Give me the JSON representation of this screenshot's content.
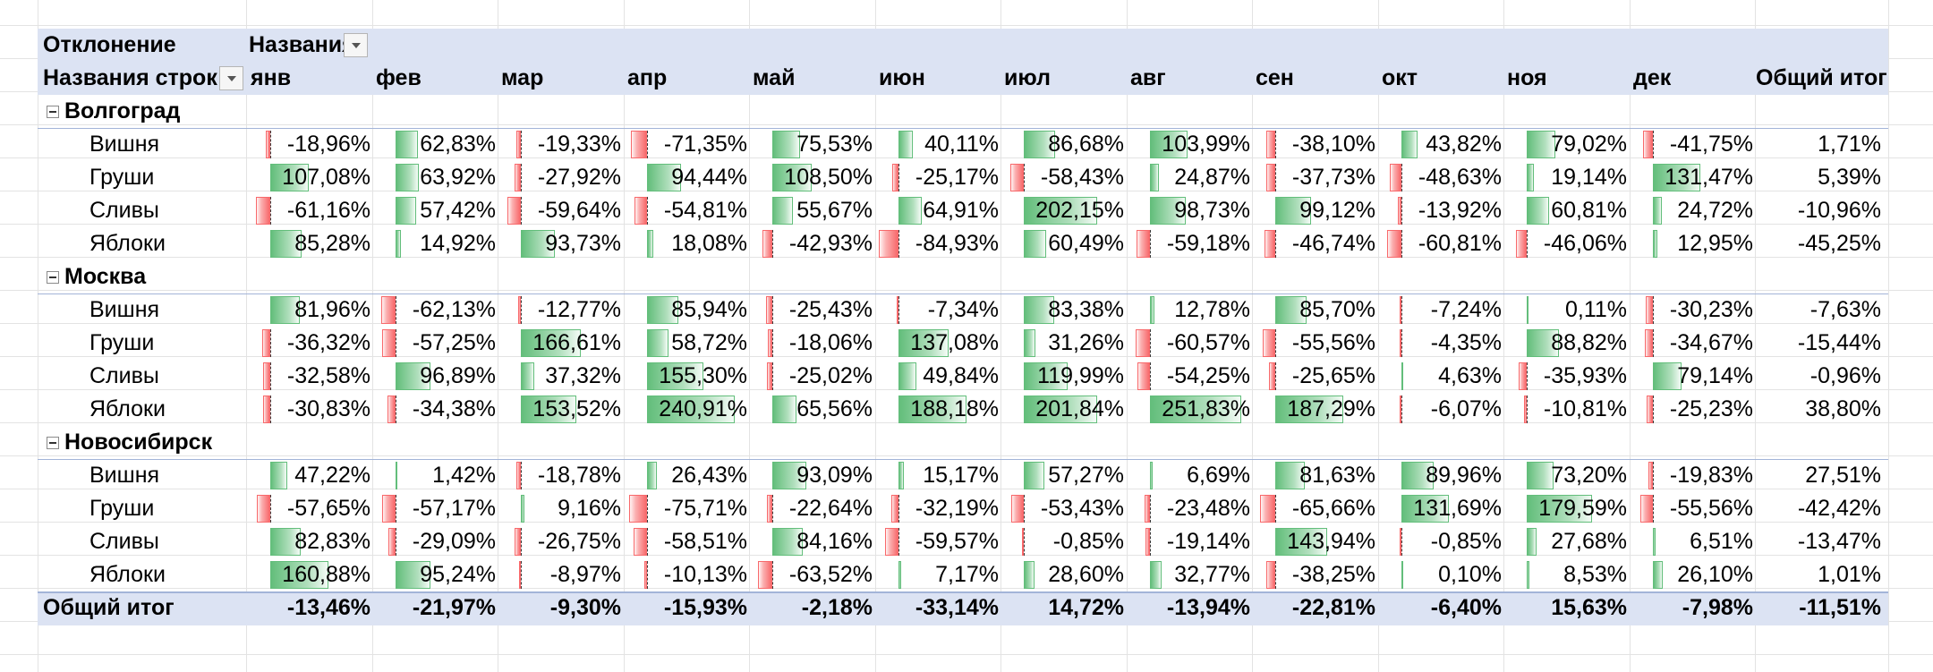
{
  "pivot": {
    "value_field_label": "Отклонение",
    "column_labels_header": "Названия столбцов",
    "row_labels_header": "Названия строк",
    "grand_total_label": "Общий итог",
    "months": [
      "янв",
      "фев",
      "мар",
      "апр",
      "май",
      "июн",
      "июл",
      "авг",
      "сен",
      "окт",
      "ноя",
      "дек"
    ],
    "groups": [
      {
        "name": "Волгоград",
        "rows": [
          {
            "label": "Вишня",
            "values": [
              "-18,96%",
              "62,83%",
              "-19,33%",
              "-71,35%",
              "75,53%",
              "40,11%",
              "86,68%",
              "103,99%",
              "-38,10%",
              "43,82%",
              "79,02%",
              "-41,75%"
            ],
            "total": "1,71%"
          },
          {
            "label": "Груши",
            "values": [
              "107,08%",
              "63,92%",
              "-27,92%",
              "94,44%",
              "108,50%",
              "-25,17%",
              "-58,43%",
              "24,87%",
              "-37,73%",
              "-48,63%",
              "19,14%",
              "131,47%"
            ],
            "total": "5,39%"
          },
          {
            "label": "Сливы",
            "values": [
              "-61,16%",
              "57,42%",
              "-59,64%",
              "-54,81%",
              "55,67%",
              "64,91%",
              "202,15%",
              "98,73%",
              "99,12%",
              "-13,92%",
              "60,81%",
              "24,72%"
            ],
            "total": "-10,96%"
          },
          {
            "label": "Яблоки",
            "values": [
              "85,28%",
              "14,92%",
              "93,73%",
              "18,08%",
              "-42,93%",
              "-84,93%",
              "60,49%",
              "-59,18%",
              "-46,74%",
              "-60,81%",
              "-46,06%",
              "12,95%"
            ],
            "total": "-45,25%"
          }
        ]
      },
      {
        "name": "Москва",
        "rows": [
          {
            "label": "Вишня",
            "values": [
              "81,96%",
              "-62,13%",
              "-12,77%",
              "85,94%",
              "-25,43%",
              "-7,34%",
              "83,38%",
              "12,78%",
              "85,70%",
              "-7,24%",
              "0,11%",
              "-30,23%"
            ],
            "total": "-7,63%"
          },
          {
            "label": "Груши",
            "values": [
              "-36,32%",
              "-57,25%",
              "166,61%",
              "58,72%",
              "-18,06%",
              "137,08%",
              "31,26%",
              "-60,57%",
              "-55,56%",
              "-4,35%",
              "88,82%",
              "-34,67%"
            ],
            "total": "-15,44%"
          },
          {
            "label": "Сливы",
            "values": [
              "-32,58%",
              "96,89%",
              "37,32%",
              "155,30%",
              "-25,02%",
              "49,84%",
              "119,99%",
              "-54,25%",
              "-25,65%",
              "4,63%",
              "-35,93%",
              "79,14%"
            ],
            "total": "-0,96%"
          },
          {
            "label": "Яблоки",
            "values": [
              "-30,83%",
              "-34,38%",
              "153,52%",
              "240,91%",
              "65,56%",
              "188,18%",
              "201,84%",
              "251,83%",
              "187,29%",
              "-6,07%",
              "-10,81%",
              "-25,23%"
            ],
            "total": "38,80%"
          }
        ]
      },
      {
        "name": "Новосибирск",
        "rows": [
          {
            "label": "Вишня",
            "values": [
              "47,22%",
              "1,42%",
              "-18,78%",
              "26,43%",
              "93,09%",
              "15,17%",
              "57,27%",
              "6,69%",
              "81,63%",
              "89,96%",
              "73,20%",
              "-19,83%"
            ],
            "total": "27,51%"
          },
          {
            "label": "Груши",
            "values": [
              "-57,65%",
              "-57,17%",
              "9,16%",
              "-75,71%",
              "-22,64%",
              "-32,19%",
              "-53,43%",
              "-23,48%",
              "-65,66%",
              "131,69%",
              "179,59%",
              "-55,56%"
            ],
            "total": "-42,42%"
          },
          {
            "label": "Сливы",
            "values": [
              "82,83%",
              "-29,09%",
              "-26,75%",
              "-58,51%",
              "84,16%",
              "-59,57%",
              "-0,85%",
              "-19,14%",
              "143,94%",
              "-0,85%",
              "27,68%",
              "6,51%"
            ],
            "total": "-13,47%"
          },
          {
            "label": "Яблоки",
            "values": [
              "160,88%",
              "95,24%",
              "-8,97%",
              "-10,13%",
              "-63,52%",
              "7,17%",
              "28,60%",
              "32,77%",
              "-38,25%",
              "0,10%",
              "8,53%",
              "26,10%"
            ],
            "total": "1,01%"
          }
        ]
      }
    ],
    "grand_totals": [
      "-13,46%",
      "-21,97%",
      "-9,30%",
      "-15,93%",
      "-2,18%",
      "-33,14%",
      "14,72%",
      "-13,94%",
      "-22,81%",
      "-6,40%",
      "15,63%",
      "-7,98%"
    ],
    "grand_total_overall": "-11,51%",
    "colors": {
      "header_band": "#dce3f3",
      "positive_bar": "#63be7b",
      "negative_bar": "#f8696b"
    }
  }
}
